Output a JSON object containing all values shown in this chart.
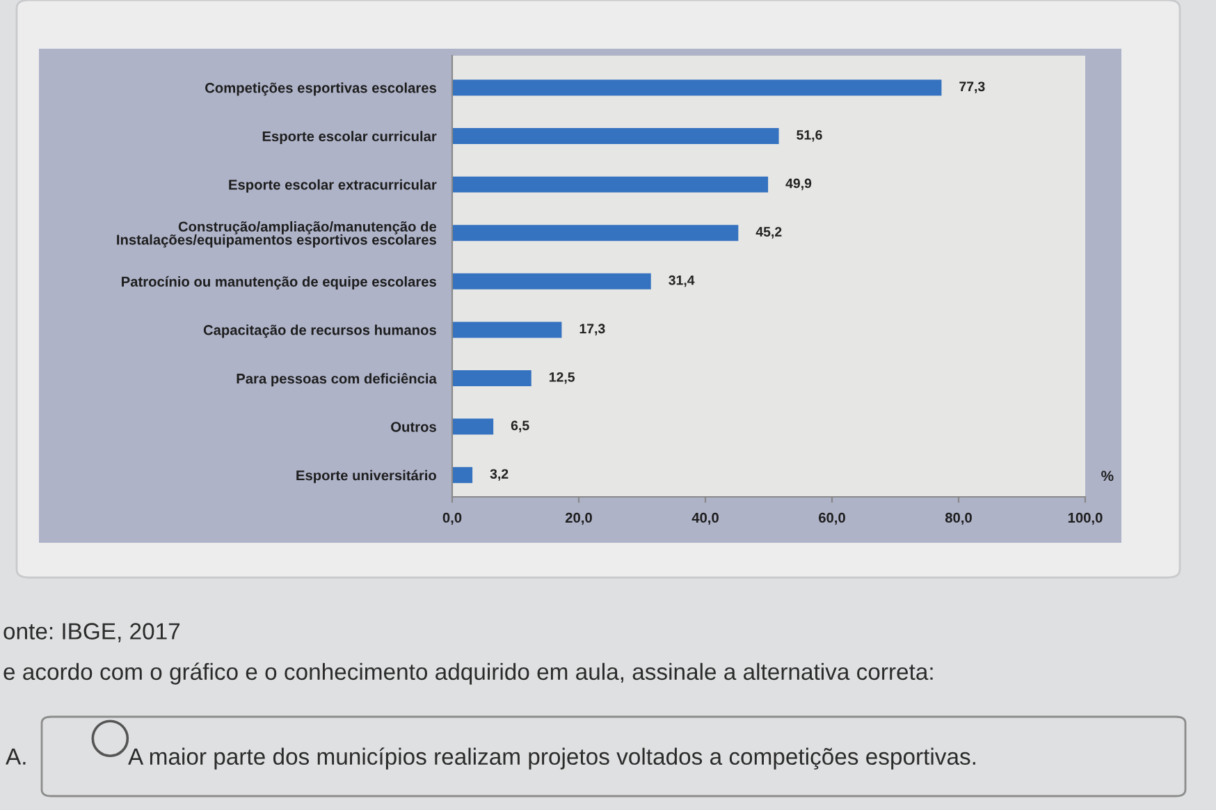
{
  "chart_data": {
    "type": "bar",
    "orientation": "horizontal",
    "categories": [
      "Competições esportivas escolares",
      "Esporte escolar curricular",
      "Esporte escolar extracurricular",
      "Construção/ampliação/manutenção de\nInstalações/equipamentos esportivos escolares",
      "Patrocínio ou manutenção de equipe escolares",
      "Capacitação de recursos humanos",
      "Para pessoas com deficiência",
      "Outros",
      "Esporte universitário"
    ],
    "values": [
      77.3,
      51.6,
      49.9,
      45.2,
      31.4,
      17.3,
      12.5,
      6.5,
      3.2
    ],
    "value_labels": [
      "77,3",
      "51,6",
      "49,9",
      "45,2",
      "31,4",
      "17,3",
      "12,5",
      "6,5",
      "3,2"
    ],
    "color": "#3572bf",
    "xlim": [
      0,
      100
    ],
    "xticks": [
      {
        "value": 0,
        "label": "0,0"
      },
      {
        "value": 20,
        "label": "20,0"
      },
      {
        "value": 40,
        "label": "40,0"
      },
      {
        "value": 60,
        "label": "60,0"
      },
      {
        "value": 80,
        "label": "80,0"
      },
      {
        "value": 100,
        "label": "100,0"
      }
    ],
    "xlabel": "%",
    "annotations": [
      "onte: IBGE, 2017",
      "e acordo com o gráfico e o conhecimento adquirido em aula, assinale a alternativa correta:",
      "A.",
      "A maior parte dos municípios realizam projetos voltados a competições esportivas."
    ]
  }
}
